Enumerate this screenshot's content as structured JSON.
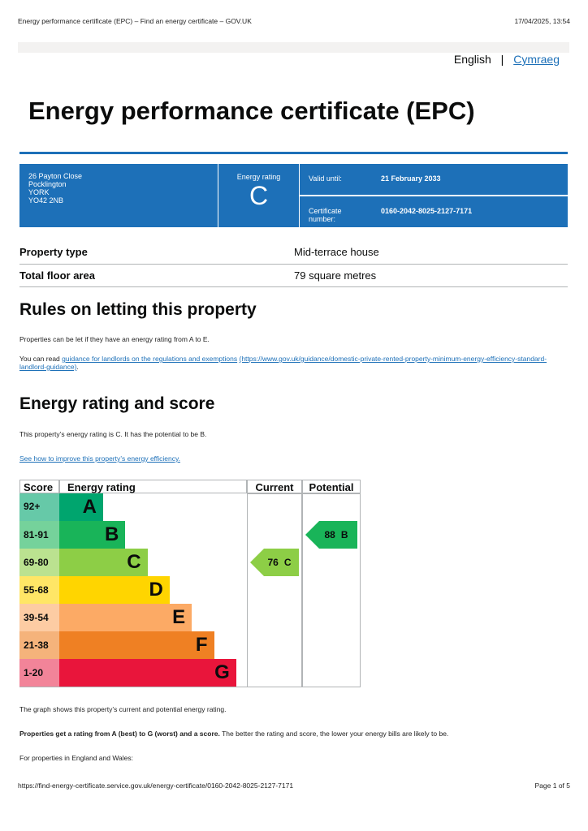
{
  "print_header": {
    "title": "Energy performance certificate (EPC) – Find an energy certificate – GOV.UK",
    "date": "17/04/2025, 13:54"
  },
  "language": {
    "current": "English",
    "separator": "|",
    "other": "Cymraeg"
  },
  "title": "Energy performance certificate (EPC)",
  "summary": {
    "address": [
      "26 Payton Close",
      "Pocklington",
      "YORK",
      "YO42 2NB"
    ],
    "rating_label": "Energy rating",
    "rating": "C",
    "valid_label": "Valid until:",
    "valid_date": "21 February 2033",
    "cert_label": "Certificate number:",
    "cert_number": "0160-2042-8025-2127-7171"
  },
  "property": [
    [
      "Property type",
      "Mid-terrace house"
    ],
    [
      "Total floor area",
      "79 square metres"
    ]
  ],
  "letting": {
    "heading": "Rules on letting this property",
    "p1": "Properties can be let if they have an energy rating from A to E.",
    "p2_prefix": "You can read ",
    "p2_link": "guidance for landlords on the regulations and exemptions",
    "p2_url": "(https://www.gov.uk/guidance/domestic-private-rented-property-minimum-energy-efficiency-standard-landlord-guidance)",
    "p2_suffix": "."
  },
  "energy": {
    "heading": "Energy rating and score",
    "p1": "This property’s energy rating is C. It has the potential to be B.",
    "link": "See how to improve this property’s energy efficiency.",
    "table": {
      "headers": [
        "Score",
        "Energy rating",
        "Current",
        "Potential"
      ],
      "bands": [
        {
          "score": "92+",
          "letter": "A"
        },
        {
          "score": "81-91",
          "letter": "B"
        },
        {
          "score": "69-80",
          "letter": "C"
        },
        {
          "score": "55-68",
          "letter": "D"
        },
        {
          "score": "39-54",
          "letter": "E"
        },
        {
          "score": "21-38",
          "letter": "F"
        },
        {
          "score": "1-20",
          "letter": "G"
        }
      ],
      "current": {
        "score": 76,
        "letter": "C"
      },
      "potential": {
        "score": 88,
        "letter": "B"
      }
    },
    "p2": "The graph shows this property’s current and potential energy rating.",
    "p3_bold": "Properties get a rating from A (best) to G (worst) and a score.",
    "p3_rest": " The better the rating and score, the lower your energy bills are likely to be.",
    "p4": "For properties in England and Wales:"
  },
  "print_footer": {
    "url": "https://find-energy-certificate.service.gov.uk/energy-certificate/0160-2042-8025-2127-7171",
    "page": "Page 1 of 5"
  }
}
